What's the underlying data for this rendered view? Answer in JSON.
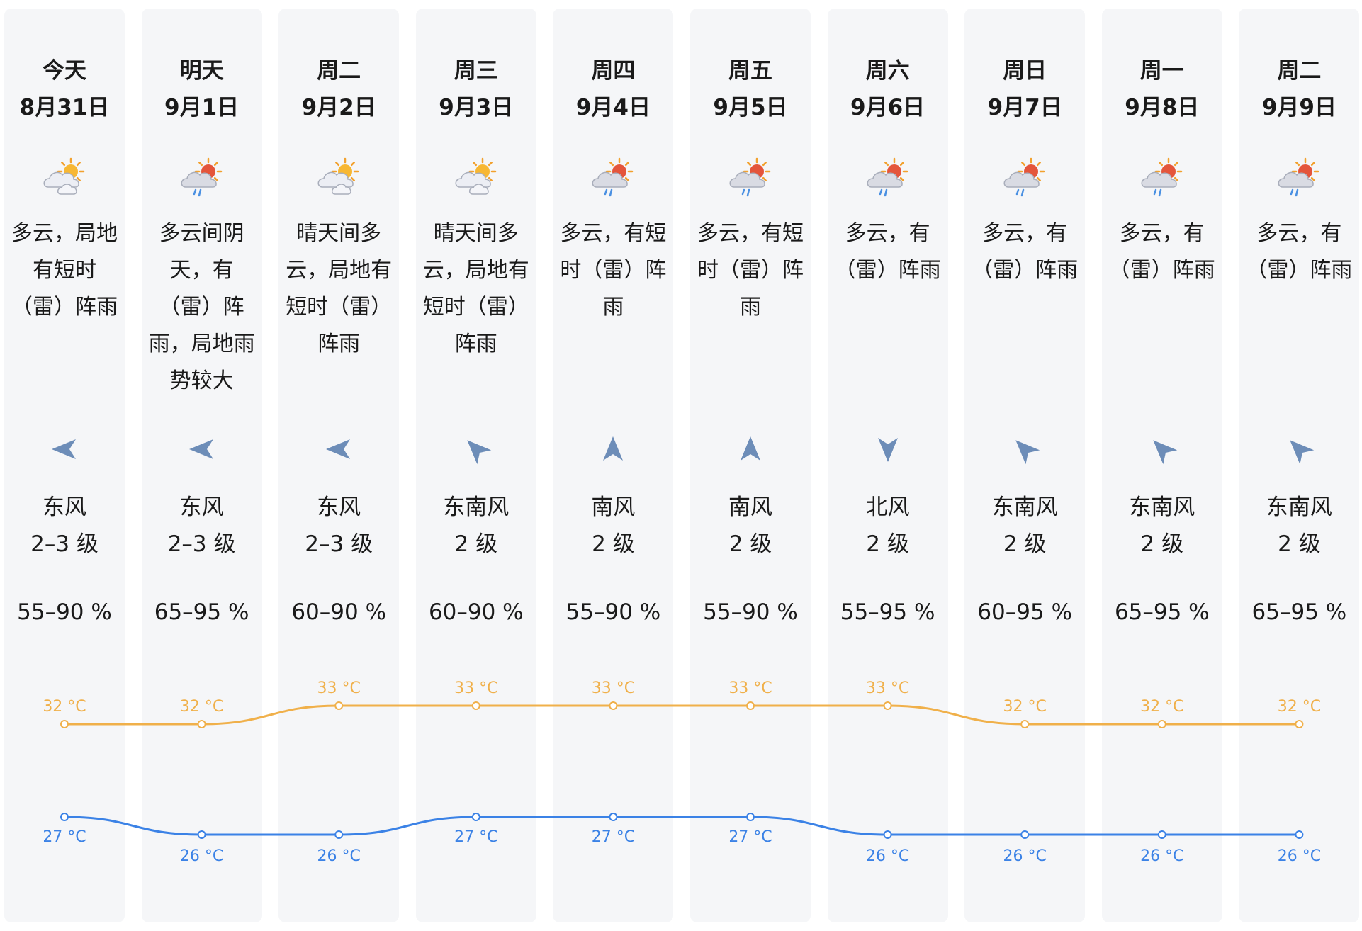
{
  "colors": {
    "high": "#f0b04a",
    "low": "#3b82e6",
    "column_bg": "#f5f6f8",
    "arrow": "#6d8db8"
  },
  "days": [
    {
      "weekday": "今天",
      "date": "8月31日",
      "icon": "partly-cloudy-sun-icon",
      "desc_lines": [
        "多云，局地",
        "有短时",
        "（雷）阵雨"
      ],
      "wind_dir": "东风",
      "wind_rotation_deg": 270,
      "wind_level": "2–3 级",
      "humidity": "55–90 %"
    },
    {
      "weekday": "明天",
      "date": "9月1日",
      "icon": "cloud-sun-rain-icon",
      "desc_lines": [
        "多云间阴",
        "天，有",
        "（雷）阵",
        "雨，局地雨",
        "势较大"
      ],
      "wind_dir": "东风",
      "wind_rotation_deg": 270,
      "wind_level": "2–3 级",
      "humidity": "65–95 %"
    },
    {
      "weekday": "周二",
      "date": "9月2日",
      "icon": "partly-cloudy-sun-icon",
      "desc_lines": [
        "晴天间多",
        "云，局地有",
        "短时（雷）",
        "阵雨"
      ],
      "wind_dir": "东风",
      "wind_rotation_deg": 270,
      "wind_level": "2–3 级",
      "humidity": "60–90 %"
    },
    {
      "weekday": "周三",
      "date": "9月3日",
      "icon": "partly-cloudy-sun-icon",
      "desc_lines": [
        "晴天间多",
        "云，局地有",
        "短时（雷）",
        "阵雨"
      ],
      "wind_dir": "东南风",
      "wind_rotation_deg": 315,
      "wind_level": "2 级",
      "humidity": "60–90 %"
    },
    {
      "weekday": "周四",
      "date": "9月4日",
      "icon": "cloud-sun-rain-icon",
      "desc_lines": [
        "多云，有短",
        "时（雷）阵",
        "雨"
      ],
      "wind_dir": "南风",
      "wind_rotation_deg": 0,
      "wind_level": "2 级",
      "humidity": "55–90 %"
    },
    {
      "weekday": "周五",
      "date": "9月5日",
      "icon": "cloud-sun-rain-icon",
      "desc_lines": [
        "多云，有短",
        "时（雷）阵",
        "雨"
      ],
      "wind_dir": "南风",
      "wind_rotation_deg": 0,
      "wind_level": "2 级",
      "humidity": "55–90 %"
    },
    {
      "weekday": "周六",
      "date": "9月6日",
      "icon": "cloud-sun-rain-icon",
      "desc_lines": [
        "多云，有",
        "（雷）阵雨"
      ],
      "wind_dir": "北风",
      "wind_rotation_deg": 180,
      "wind_level": "2 级",
      "humidity": "55–95 %"
    },
    {
      "weekday": "周日",
      "date": "9月7日",
      "icon": "cloud-sun-rain-icon",
      "desc_lines": [
        "多云，有",
        "（雷）阵雨"
      ],
      "wind_dir": "东南风",
      "wind_rotation_deg": 315,
      "wind_level": "2 级",
      "humidity": "60–95 %"
    },
    {
      "weekday": "周一",
      "date": "9月8日",
      "icon": "cloud-sun-rain-icon",
      "desc_lines": [
        "多云，有",
        "（雷）阵雨"
      ],
      "wind_dir": "东南风",
      "wind_rotation_deg": 315,
      "wind_level": "2 级",
      "humidity": "65–95 %"
    },
    {
      "weekday": "周二",
      "date": "9月9日",
      "icon": "cloud-sun-rain-icon",
      "desc_lines": [
        "多云，有",
        "（雷）阵雨"
      ],
      "wind_dir": "东南风",
      "wind_rotation_deg": 315,
      "wind_level": "2 级",
      "humidity": "65–95 %"
    }
  ],
  "chart_data": {
    "type": "line",
    "categories": [
      "8月31日",
      "9月1日",
      "9月2日",
      "9月3日",
      "9月4日",
      "9月5日",
      "9月6日",
      "9月7日",
      "9月8日",
      "9月9日"
    ],
    "unit": "°C",
    "series": [
      {
        "id": "high",
        "values": [
          32,
          32,
          33,
          33,
          33,
          33,
          33,
          32,
          32,
          32
        ],
        "labels": [
          "32 °C",
          "32 °C",
          "33 °C",
          "33 °C",
          "33 °C",
          "33 °C",
          "33 °C",
          "32 °C",
          "32 °C",
          "32 °C"
        ]
      },
      {
        "id": "low",
        "values": [
          27,
          26,
          26,
          27,
          27,
          27,
          26,
          26,
          26,
          26
        ],
        "labels": [
          "27 °C",
          "26 °C",
          "26 °C",
          "27 °C",
          "27 °C",
          "27 °C",
          "26 °C",
          "26 °C",
          "26 °C",
          "26 °C"
        ]
      }
    ],
    "grid": false,
    "legend": "none"
  }
}
